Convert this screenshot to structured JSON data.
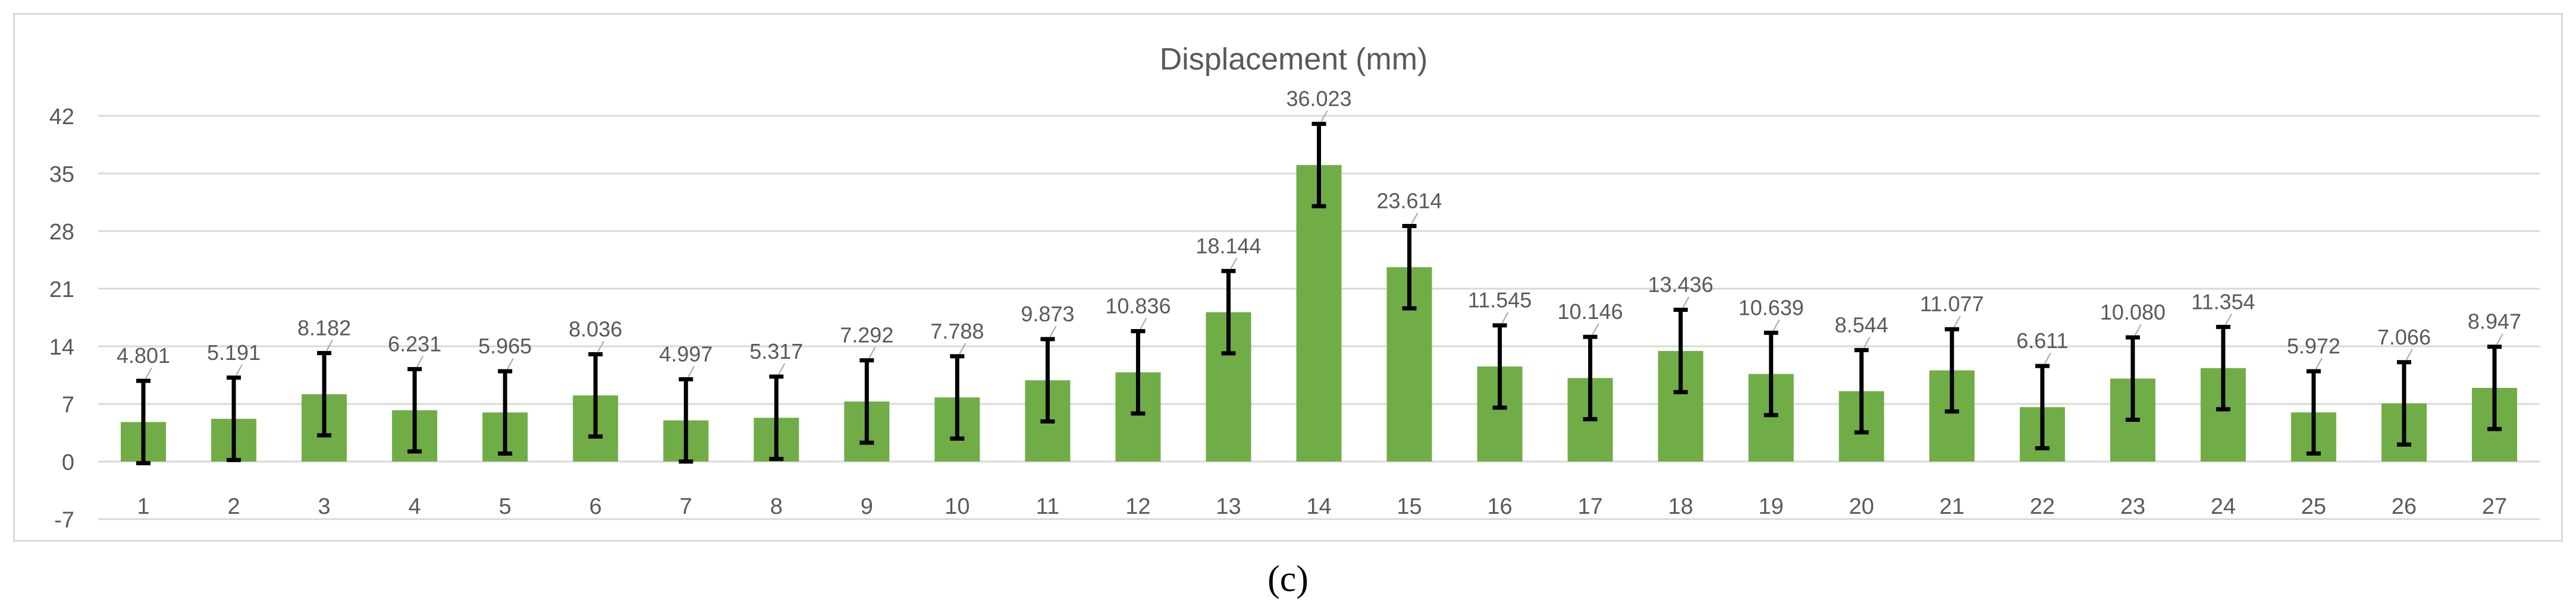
{
  "chart_data": {
    "type": "bar",
    "title": "Displacement (mm)",
    "xlabel": "",
    "ylabel": "",
    "ylim": [
      -7,
      42
    ],
    "yticks": [
      -7,
      0,
      7,
      14,
      21,
      28,
      35,
      42
    ],
    "categories": [
      "1",
      "2",
      "3",
      "4",
      "5",
      "6",
      "7",
      "8",
      "9",
      "10",
      "11",
      "12",
      "13",
      "14",
      "15",
      "16",
      "17",
      "18",
      "19",
      "20",
      "21",
      "22",
      "23",
      "24",
      "25",
      "26",
      "27"
    ],
    "values": [
      4.801,
      5.191,
      8.182,
      6.231,
      5.965,
      8.036,
      4.997,
      5.317,
      7.292,
      7.788,
      9.873,
      10.836,
      18.144,
      36.023,
      23.614,
      11.545,
      10.146,
      13.436,
      10.639,
      8.544,
      11.077,
      6.611,
      10.08,
      11.354,
      5.972,
      7.066,
      8.947
    ],
    "data_labels": [
      "4.801",
      "5.191",
      "8.182",
      "6.231",
      "5.965",
      "8.036",
      "4.997",
      "5.317",
      "7.292",
      "7.788",
      "9.873",
      "10.836",
      "18.144",
      "36.023",
      "23.614",
      "11.545",
      "10.146",
      "13.436",
      "10.639",
      "8.544",
      "11.077",
      "6.611",
      "10.080",
      "11.354",
      "5.972",
      "7.066",
      "8.947"
    ],
    "error_bar": 5,
    "grid": true,
    "legend": "none",
    "bar_color": "#70ad47",
    "error_color": "#000000"
  },
  "caption": "(c)"
}
